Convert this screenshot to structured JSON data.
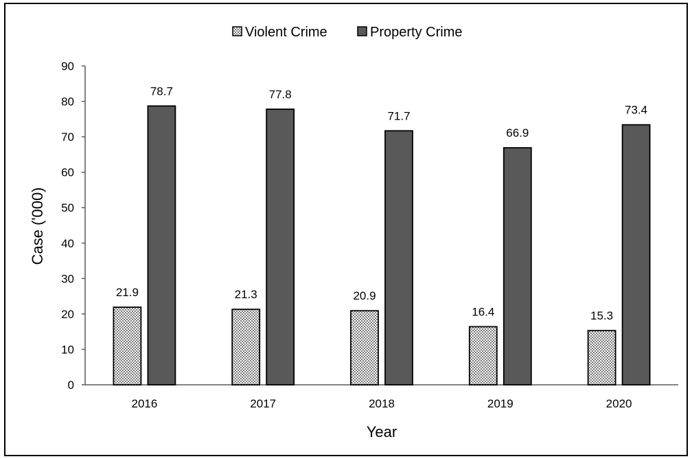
{
  "chart_data": {
    "type": "bar",
    "categories": [
      "2016",
      "2017",
      "2018",
      "2019",
      "2020"
    ],
    "series": [
      {
        "name": "Violent Crime",
        "values": [
          21.9,
          21.3,
          20.9,
          16.4,
          15.3
        ],
        "pattern": "dotted-checker",
        "color": "#ffffff"
      },
      {
        "name": "Property Crime",
        "values": [
          78.7,
          77.8,
          71.7,
          66.9,
          73.4
        ],
        "color": "#595959"
      }
    ],
    "data_labels": [
      [
        "21.9",
        "21.3",
        "20.9",
        "16.4",
        "15.3"
      ],
      [
        "78.7",
        "77.8",
        "71.7",
        "66.9",
        "73.4"
      ]
    ],
    "xlabel": "Year",
    "ylabel": "Case ('000)",
    "ylim": [
      0,
      90
    ],
    "yticks": [
      0,
      10,
      20,
      30,
      40,
      50,
      60,
      70,
      80,
      90
    ],
    "grid": false,
    "legend_position": "top-center"
  }
}
